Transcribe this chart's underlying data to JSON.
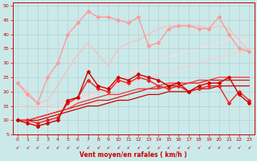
{
  "xlabel": "Vent moyen/en rafales ( km/h )",
  "xlim": [
    -0.5,
    23.5
  ],
  "ylim": [
    5,
    51
  ],
  "yticks": [
    5,
    10,
    15,
    20,
    25,
    30,
    35,
    40,
    45,
    50
  ],
  "xticks": [
    0,
    1,
    2,
    3,
    4,
    5,
    6,
    7,
    8,
    9,
    10,
    11,
    12,
    13,
    14,
    15,
    16,
    17,
    18,
    19,
    20,
    21,
    22,
    23
  ],
  "background_color": "#cce9e9",
  "grid_color": "#aacccc",
  "series": [
    {
      "name": "dark_red_marker",
      "x": [
        0,
        1,
        2,
        3,
        4,
        5,
        6,
        7,
        8,
        9,
        10,
        11,
        12,
        13,
        14,
        15,
        16,
        17,
        18,
        19,
        20,
        21,
        22,
        23
      ],
      "y": [
        10,
        9,
        8,
        9,
        10,
        17,
        18,
        27,
        22,
        21,
        25,
        24,
        26,
        25,
        24,
        22,
        23,
        20,
        22,
        23,
        23,
        25,
        19,
        16
      ],
      "color": "#cc0000",
      "marker": "D",
      "markersize": 2.0,
      "linewidth": 1.0,
      "zorder": 5
    },
    {
      "name": "mid_red_marker",
      "x": [
        0,
        1,
        2,
        3,
        4,
        5,
        6,
        7,
        8,
        9,
        10,
        11,
        12,
        13,
        14,
        15,
        16,
        17,
        18,
        19,
        20,
        21,
        22,
        23
      ],
      "y": [
        10,
        10,
        9,
        10,
        11,
        16,
        18,
        24,
        21,
        20,
        24,
        23,
        25,
        24,
        22,
        21,
        22,
        20,
        21,
        22,
        22,
        16,
        20,
        17
      ],
      "color": "#ee2222",
      "marker": "D",
      "markersize": 2.0,
      "linewidth": 1.0,
      "zorder": 4
    },
    {
      "name": "dark_line1",
      "x": [
        0,
        1,
        2,
        3,
        4,
        5,
        6,
        7,
        8,
        9,
        10,
        11,
        12,
        13,
        14,
        15,
        16,
        17,
        18,
        19,
        20,
        21,
        22,
        23
      ],
      "y": [
        10,
        10,
        10,
        11,
        12,
        13,
        14,
        15,
        15,
        16,
        17,
        17,
        18,
        19,
        19,
        20,
        20,
        20,
        21,
        21,
        22,
        22,
        22,
        22
      ],
      "color": "#cc0000",
      "marker": null,
      "linewidth": 0.9,
      "zorder": 2
    },
    {
      "name": "dark_line2",
      "x": [
        0,
        1,
        2,
        3,
        4,
        5,
        6,
        7,
        8,
        9,
        10,
        11,
        12,
        13,
        14,
        15,
        16,
        17,
        18,
        19,
        20,
        21,
        22,
        23
      ],
      "y": [
        10,
        10,
        11,
        12,
        13,
        14,
        15,
        16,
        17,
        17,
        18,
        19,
        20,
        21,
        21,
        22,
        22,
        23,
        23,
        24,
        24,
        24,
        24,
        24
      ],
      "color": "#dd1111",
      "marker": null,
      "linewidth": 0.9,
      "zorder": 2
    },
    {
      "name": "dark_line3",
      "x": [
        0,
        1,
        2,
        3,
        4,
        5,
        6,
        7,
        8,
        9,
        10,
        11,
        12,
        13,
        14,
        15,
        16,
        17,
        18,
        19,
        20,
        21,
        22,
        23
      ],
      "y": [
        10,
        10,
        11,
        12,
        13,
        14,
        16,
        17,
        18,
        19,
        19,
        20,
        21,
        21,
        22,
        23,
        23,
        23,
        24,
        24,
        25,
        25,
        25,
        25
      ],
      "color": "#ff3333",
      "marker": null,
      "linewidth": 0.9,
      "zorder": 2
    },
    {
      "name": "light_pink_marker",
      "x": [
        0,
        1,
        2,
        3,
        4,
        5,
        6,
        7,
        8,
        9,
        10,
        11,
        12,
        13,
        14,
        15,
        16,
        17,
        18,
        19,
        20,
        21,
        22,
        23
      ],
      "y": [
        23,
        19,
        16,
        25,
        30,
        40,
        44,
        48,
        46,
        46,
        45,
        44,
        46,
        36,
        37,
        42,
        43,
        43,
        42,
        42,
        46,
        40,
        35,
        34
      ],
      "color": "#ff9999",
      "marker": "D",
      "markersize": 2.0,
      "linewidth": 1.0,
      "zorder": 3
    },
    {
      "name": "light_pink_line1",
      "x": [
        0,
        1,
        2,
        3,
        4,
        5,
        6,
        7,
        8,
        9,
        10,
        11,
        12,
        13,
        14,
        15,
        16,
        17,
        18,
        19,
        20,
        21,
        22,
        23
      ],
      "y": [
        23,
        20,
        16,
        17,
        22,
        28,
        33,
        37,
        33,
        29,
        35,
        37,
        38,
        40,
        42,
        43,
        43,
        43,
        43,
        42,
        43,
        42,
        38,
        34
      ],
      "color": "#ffbbbb",
      "marker": null,
      "linewidth": 0.9,
      "zorder": 2
    },
    {
      "name": "light_pink_line2",
      "x": [
        0,
        1,
        2,
        3,
        4,
        5,
        6,
        7,
        8,
        9,
        10,
        11,
        12,
        13,
        14,
        15,
        16,
        17,
        18,
        19,
        20,
        21,
        22,
        23
      ],
      "y": [
        16,
        15,
        14,
        15,
        16,
        17,
        18,
        19,
        20,
        21,
        22,
        23,
        24,
        25,
        26,
        27,
        28,
        29,
        30,
        31,
        32,
        33,
        34,
        35
      ],
      "color": "#ffcccc",
      "marker": null,
      "linewidth": 0.9,
      "zorder": 1
    },
    {
      "name": "lightest_pink_line",
      "x": [
        0,
        1,
        2,
        3,
        4,
        5,
        6,
        7,
        8,
        9,
        10,
        11,
        12,
        13,
        14,
        15,
        16,
        17,
        18,
        19,
        20,
        21,
        22,
        23
      ],
      "y": [
        23,
        19,
        16,
        14,
        14,
        15,
        17,
        18,
        20,
        22,
        24,
        26,
        28,
        30,
        31,
        32,
        33,
        34,
        35,
        36,
        37,
        38,
        38,
        38
      ],
      "color": "#ffdddd",
      "marker": null,
      "linewidth": 0.9,
      "zorder": 1
    }
  ]
}
